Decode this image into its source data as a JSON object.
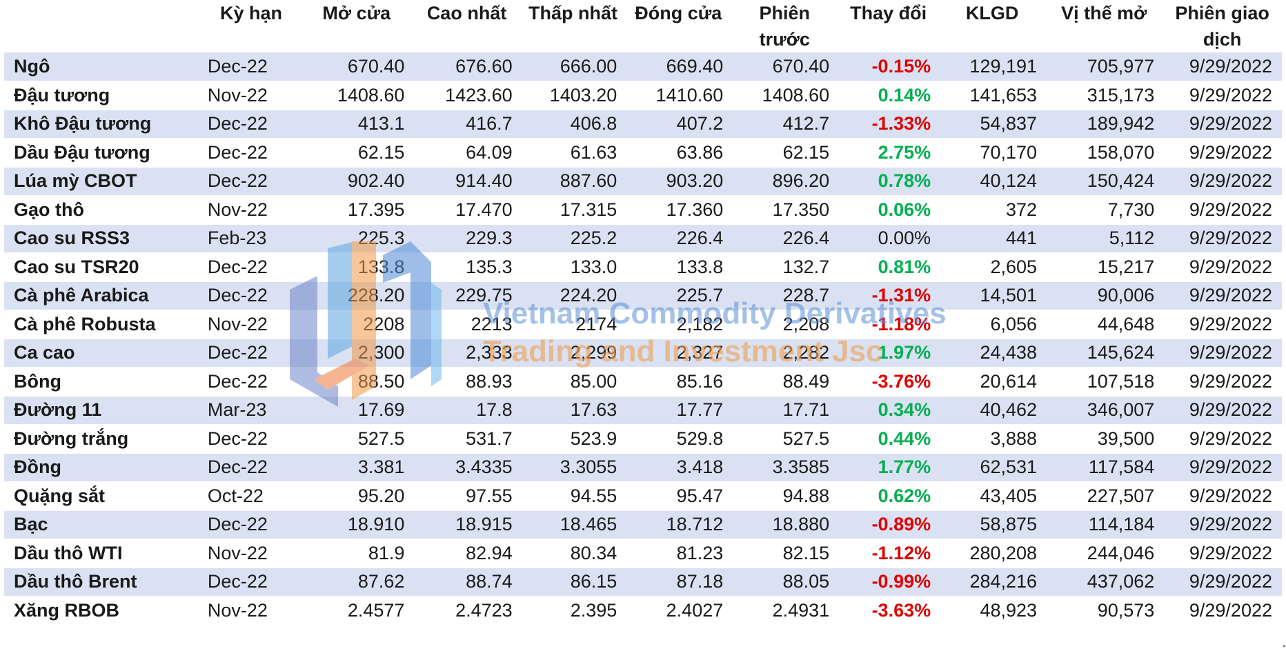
{
  "headers": {
    "name": "",
    "term": "Kỳ hạn",
    "open": "Mở cửa",
    "high": "Cao nhất",
    "low": "Thấp nhất",
    "close": "Đóng cửa",
    "prev": "Phiên trước",
    "change": "Thay đổi",
    "volume": "KLGD",
    "oi": "Vị thế mở",
    "date": "Phiên giao dịch"
  },
  "rows": [
    {
      "name": "Ngô",
      "term": "Dec-22",
      "open": "670.40",
      "high": "676.60",
      "low": "666.00",
      "close": "669.40",
      "prev": "670.40",
      "change": "-0.15%",
      "dir": "neg",
      "volume": "129,191",
      "oi": "705,977",
      "date": "9/29/2022"
    },
    {
      "name": "Đậu tương",
      "term": "Nov-22",
      "open": "1408.60",
      "high": "1423.60",
      "low": "1403.20",
      "close": "1410.60",
      "prev": "1408.60",
      "change": "0.14%",
      "dir": "pos",
      "volume": "141,653",
      "oi": "315,173",
      "date": "9/29/2022"
    },
    {
      "name": "Khô Đậu tương",
      "term": "Dec-22",
      "open": "413.1",
      "high": "416.7",
      "low": "406.8",
      "close": "407.2",
      "prev": "412.7",
      "change": "-1.33%",
      "dir": "neg",
      "volume": "54,837",
      "oi": "189,942",
      "date": "9/29/2022"
    },
    {
      "name": "Dầu Đậu tương",
      "term": "Dec-22",
      "open": "62.15",
      "high": "64.09",
      "low": "61.63",
      "close": "63.86",
      "prev": "62.15",
      "change": "2.75%",
      "dir": "pos",
      "volume": "70,170",
      "oi": "158,070",
      "date": "9/29/2022"
    },
    {
      "name": "Lúa mỳ CBOT",
      "term": "Dec-22",
      "open": "902.40",
      "high": "914.40",
      "low": "887.60",
      "close": "903.20",
      "prev": "896.20",
      "change": "0.78%",
      "dir": "pos",
      "volume": "40,124",
      "oi": "150,424",
      "date": "9/29/2022"
    },
    {
      "name": "Gạo thô",
      "term": "Nov-22",
      "open": "17.395",
      "high": "17.470",
      "low": "17.315",
      "close": "17.360",
      "prev": "17.350",
      "change": "0.06%",
      "dir": "pos",
      "volume": "372",
      "oi": "7,730",
      "date": "9/29/2022"
    },
    {
      "name": "Cao su RSS3",
      "term": "Feb-23",
      "open": "225.3",
      "high": "229.3",
      "low": "225.2",
      "close": "226.4",
      "prev": "226.4",
      "change": "0.00%",
      "dir": "flat",
      "volume": "441",
      "oi": "5,112",
      "date": "9/29/2022"
    },
    {
      "name": "Cao su TSR20",
      "term": "Dec-22",
      "open": "133.8",
      "high": "135.3",
      "low": "133.0",
      "close": "133.8",
      "prev": "132.7",
      "change": "0.81%",
      "dir": "pos",
      "volume": "2,605",
      "oi": "15,217",
      "date": "9/29/2022"
    },
    {
      "name": "Cà phê Arabica",
      "term": "Dec-22",
      "open": "228.20",
      "high": "229.75",
      "low": "224.20",
      "close": "225.7",
      "prev": "228.7",
      "change": "-1.31%",
      "dir": "neg",
      "volume": "14,501",
      "oi": "90,006",
      "date": "9/29/2022"
    },
    {
      "name": "Cà phê Robusta",
      "term": "Nov-22",
      "open": "2208",
      "high": "2213",
      "low": "2174",
      "close": "2,182",
      "prev": "2,208",
      "change": "-1.18%",
      "dir": "neg",
      "volume": "6,056",
      "oi": "44,648",
      "date": "9/29/2022"
    },
    {
      "name": "Ca cao",
      "term": "Dec-22",
      "open": "2,300",
      "high": "2,333",
      "low": "2,299",
      "close": "2,327",
      "prev": "2,282",
      "change": "1.97%",
      "dir": "pos",
      "volume": "24,438",
      "oi": "145,624",
      "date": "9/29/2022"
    },
    {
      "name": "Bông",
      "term": "Dec-22",
      "open": "88.50",
      "high": "88.93",
      "low": "85.00",
      "close": "85.16",
      "prev": "88.49",
      "change": "-3.76%",
      "dir": "neg",
      "volume": "20,614",
      "oi": "107,518",
      "date": "9/29/2022"
    },
    {
      "name": "Đường 11",
      "term": "Mar-23",
      "open": "17.69",
      "high": "17.8",
      "low": "17.63",
      "close": "17.77",
      "prev": "17.71",
      "change": "0.34%",
      "dir": "pos",
      "volume": "40,462",
      "oi": "346,007",
      "date": "9/29/2022"
    },
    {
      "name": "Đường trắng",
      "term": "Dec-22",
      "open": "527.5",
      "high": "531.7",
      "low": "523.9",
      "close": "529.8",
      "prev": "527.5",
      "change": "0.44%",
      "dir": "pos",
      "volume": "3,888",
      "oi": "39,500",
      "date": "9/29/2022"
    },
    {
      "name": "Đồng",
      "term": "Dec-22",
      "open": "3.381",
      "high": "3.4335",
      "low": "3.3055",
      "close": "3.418",
      "prev": "3.3585",
      "change": "1.77%",
      "dir": "pos",
      "volume": "62,531",
      "oi": "117,584",
      "date": "9/29/2022"
    },
    {
      "name": "Quặng sắt",
      "term": "Oct-22",
      "open": "95.20",
      "high": "97.55",
      "low": "94.55",
      "close": "95.47",
      "prev": "94.88",
      "change": "0.62%",
      "dir": "pos",
      "volume": "43,405",
      "oi": "227,507",
      "date": "9/29/2022"
    },
    {
      "name": "Bạc",
      "term": "Dec-22",
      "open": "18.910",
      "high": "18.915",
      "low": "18.465",
      "close": "18.712",
      "prev": "18.880",
      "change": "-0.89%",
      "dir": "neg",
      "volume": "58,875",
      "oi": "114,184",
      "date": "9/29/2022"
    },
    {
      "name": "Dầu thô WTI",
      "term": "Nov-22",
      "open": "81.9",
      "high": "82.94",
      "low": "80.34",
      "close": "81.23",
      "prev": "82.15",
      "change": "-1.12%",
      "dir": "neg",
      "volume": "280,208",
      "oi": "244,046",
      "date": "9/29/2022"
    },
    {
      "name": "Dầu thô Brent",
      "term": "Dec-22",
      "open": "87.62",
      "high": "88.74",
      "low": "86.15",
      "close": "87.18",
      "prev": "88.05",
      "change": "-0.99%",
      "dir": "neg",
      "volume": "284,216",
      "oi": "437,062",
      "date": "9/29/2022"
    },
    {
      "name": "Xăng RBOB",
      "term": "Nov-22",
      "open": "2.4577",
      "high": "2.4723",
      "low": "2.395",
      "close": "2.4027",
      "prev": "2.4931",
      "change": "-3.63%",
      "dir": "neg",
      "volume": "48,923",
      "oi": "90,573",
      "date": "9/29/2022"
    }
  ],
  "watermark": {
    "line1": "Vietnam Commodity Derivatives",
    "line2": "Trading and Investment Jsc",
    "logo_icon": "vcd-logo-icon"
  },
  "colors": {
    "negative": "#e00000",
    "positive": "#00b050",
    "band": "#d9e1f2"
  }
}
